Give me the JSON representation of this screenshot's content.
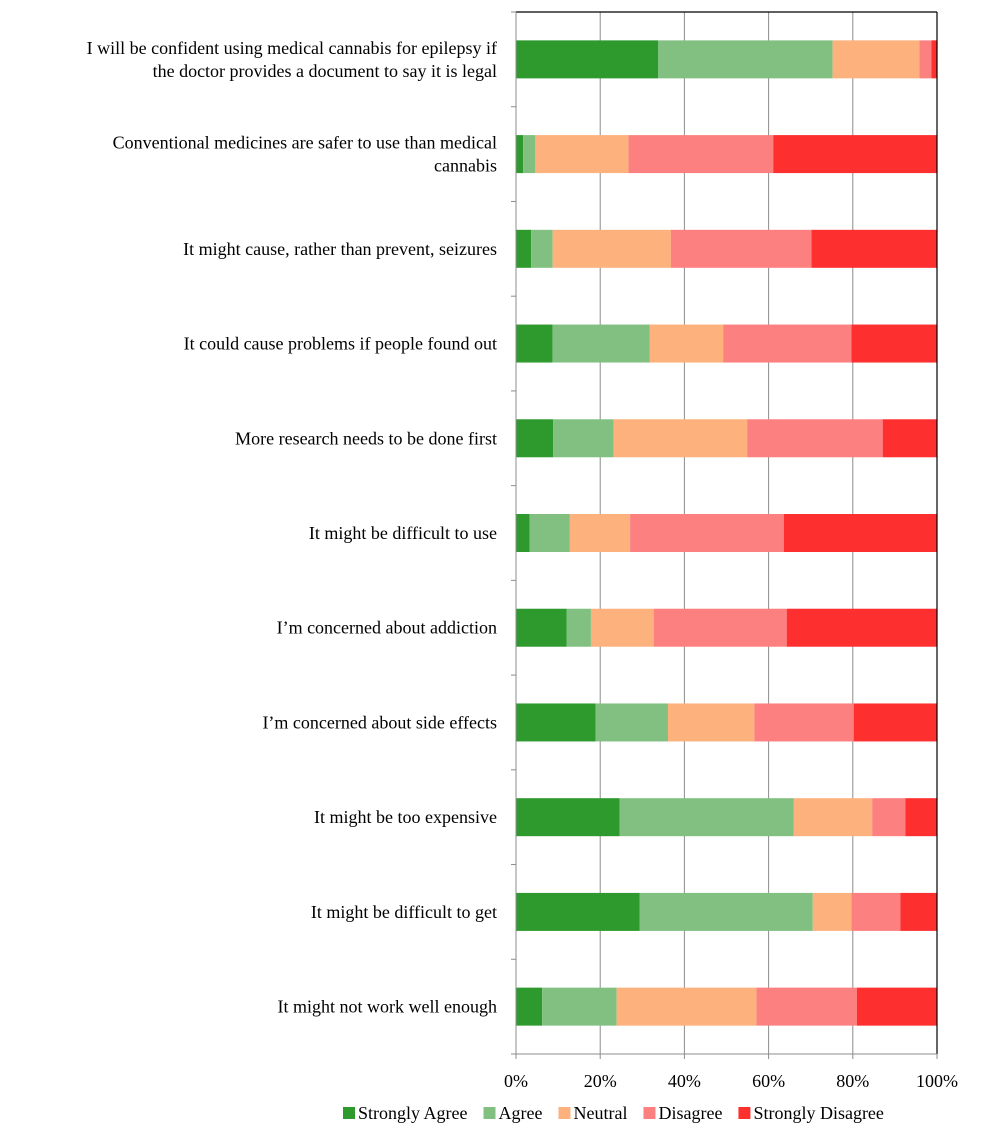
{
  "chart_data": {
    "type": "bar",
    "orientation": "horizontal",
    "stacked": "percent",
    "categories": [
      [
        "I will be confident using medical cannabis for epilepsy if",
        "the doctor provides a document to say it is legal"
      ],
      [
        "Conventional medicines are safer to use than medical",
        "cannabis"
      ],
      [
        "It might cause, rather than prevent, seizures"
      ],
      [
        "It could cause problems if people found out"
      ],
      [
        "More research needs to be done first"
      ],
      [
        "It might be difficult to use"
      ],
      [
        "I’m concerned about addiction"
      ],
      [
        "I’m concerned about side effects"
      ],
      [
        "It might be too expensive"
      ],
      [
        "It might be difficult to get"
      ],
      [
        "It might not work well enough"
      ]
    ],
    "series": [
      {
        "name": "Strongly Agree",
        "color": "#2e9a2e",
        "values": [
          33.8,
          1.7,
          3.6,
          8.7,
          8.8,
          3.2,
          12.0,
          18.9,
          24.6,
          29.4,
          6.2
        ]
      },
      {
        "name": "Agree",
        "color": "#82c082",
        "values": [
          41.4,
          2.9,
          5.1,
          23.1,
          14.4,
          9.6,
          5.8,
          17.2,
          41.4,
          41.1,
          17.7
        ]
      },
      {
        "name": "Neutral",
        "color": "#fdb27d",
        "values": [
          20.6,
          22.1,
          28.1,
          17.4,
          31.7,
          14.3,
          14.9,
          20.5,
          18.6,
          9.2,
          33.2
        ]
      },
      {
        "name": "Disagree",
        "color": "#fd8080",
        "values": [
          2.9,
          34.4,
          33.4,
          30.5,
          32.2,
          36.5,
          31.6,
          23.6,
          7.9,
          11.6,
          23.9
        ]
      },
      {
        "name": "Strongly Disagree",
        "color": "#fd2f2f",
        "values": [
          1.3,
          38.9,
          29.8,
          20.3,
          12.9,
          36.4,
          35.7,
          19.8,
          7.5,
          8.7,
          19.0
        ]
      }
    ],
    "xlim": [
      0,
      100
    ],
    "xticks": [
      "0%",
      "20%",
      "40%",
      "60%",
      "80%",
      "100%"
    ],
    "xlabel": "",
    "ylabel": "",
    "grid": "vertical",
    "legend": "bottom"
  }
}
